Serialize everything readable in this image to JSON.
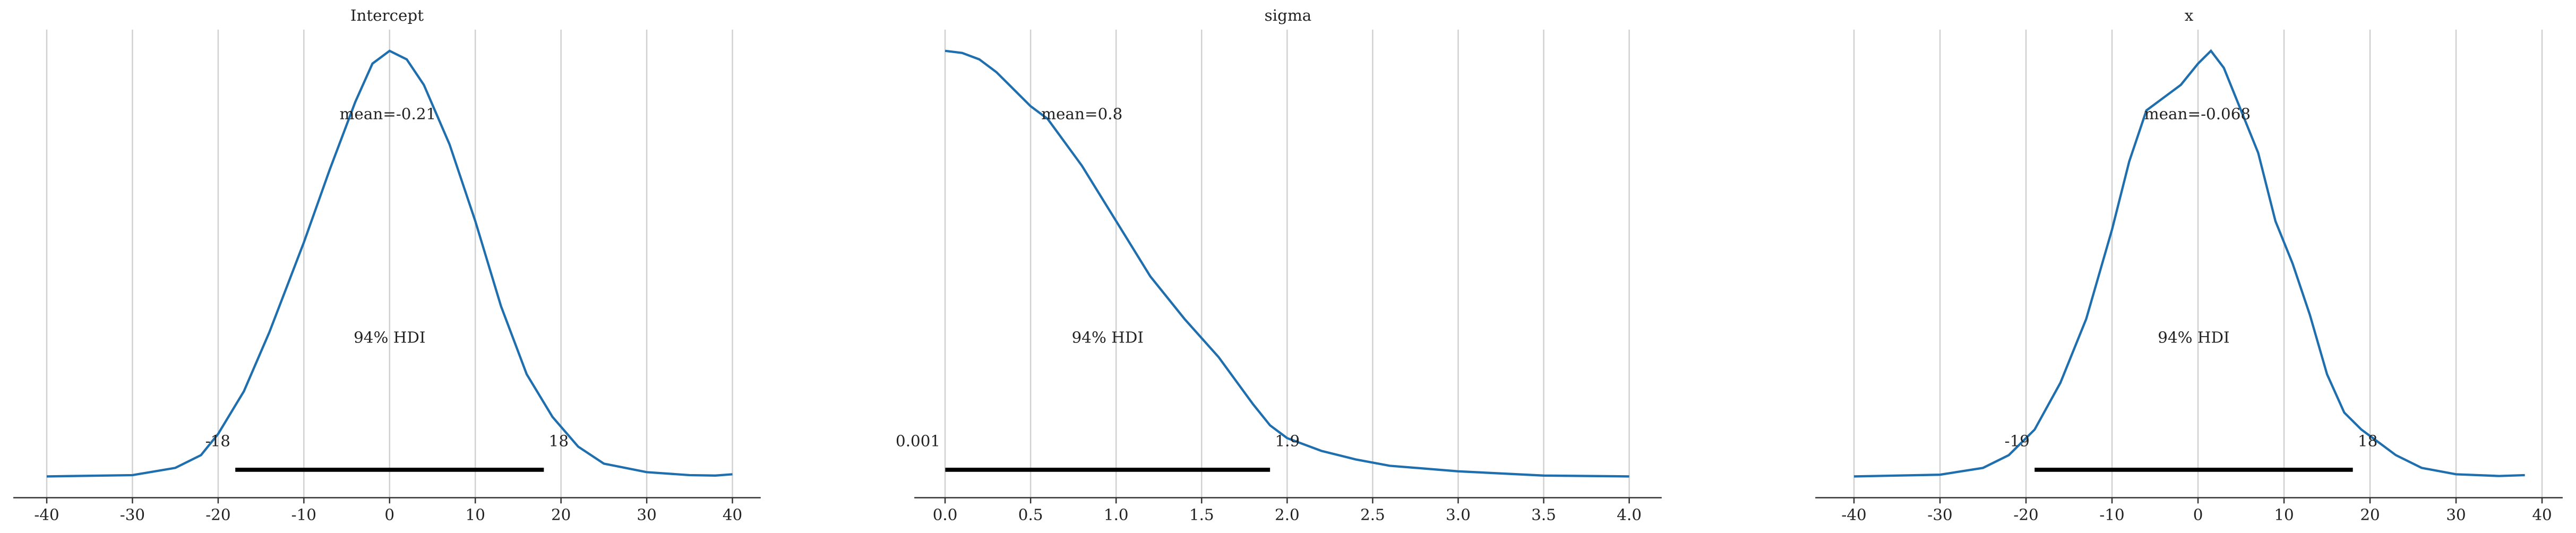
{
  "chart_data": [
    {
      "type": "kde",
      "title": "Intercept",
      "color": "#1f6fae",
      "grid": true,
      "xlim": [
        -43.9,
        43.3
      ],
      "ylim": [
        -0.05,
        1.05
      ],
      "xticks": [
        -40,
        -30,
        -20,
        -10,
        0,
        10,
        20,
        30,
        40
      ],
      "x": [
        -40,
        -30,
        -25,
        -22,
        -20,
        -17,
        -14,
        -10,
        -7,
        -4,
        -2,
        0,
        2,
        4,
        7,
        10,
        13,
        16,
        19,
        22,
        25,
        30,
        35,
        38,
        40
      ],
      "values": [
        0.0,
        0.003,
        0.02,
        0.05,
        0.1,
        0.2,
        0.34,
        0.55,
        0.72,
        0.88,
        0.97,
        1.0,
        0.98,
        0.92,
        0.78,
        0.6,
        0.4,
        0.24,
        0.14,
        0.07,
        0.03,
        0.01,
        0.003,
        0.002,
        0.005
      ],
      "mean": {
        "value": -0.21,
        "label": "mean=-0.21"
      },
      "hdi_label": "94% HDI",
      "hdi": [
        -18,
        18
      ]
    },
    {
      "type": "kde",
      "title": "sigma",
      "color": "#1f6fae",
      "grid": true,
      "xlim": [
        -0.18,
        4.19
      ],
      "ylim": [
        -0.05,
        1.05
      ],
      "xticks": [
        {
          "value": 0,
          "label": "0.0"
        },
        0.5,
        {
          "value": 1,
          "label": "1.0"
        },
        1.5,
        {
          "value": 2,
          "label": "2.0"
        },
        2.5,
        {
          "value": 3,
          "label": "3.0"
        },
        3.5,
        {
          "value": 4,
          "label": "4.0"
        }
      ],
      "x": [
        0,
        0.1,
        0.2,
        0.3,
        0.4,
        0.5,
        0.6,
        0.8,
        1.0,
        1.2,
        1.4,
        1.6,
        1.8,
        1.9,
        2.0,
        2.2,
        2.4,
        2.6,
        3.0,
        3.5,
        4.0
      ],
      "values": [
        1.0,
        0.995,
        0.98,
        0.95,
        0.91,
        0.87,
        0.84,
        0.73,
        0.6,
        0.47,
        0.37,
        0.28,
        0.17,
        0.12,
        0.09,
        0.06,
        0.04,
        0.025,
        0.012,
        0.002,
        0.0
      ],
      "mean": {
        "value": 0.8,
        "label": "mean=0.8"
      },
      "hdi_label": "94% HDI",
      "hdi": [
        0.001,
        1.9
      ]
    },
    {
      "type": "kde",
      "title": "x",
      "color": "#1f6fae",
      "grid": true,
      "xlim": [
        -44.5,
        42.4
      ],
      "ylim": [
        -0.05,
        1.05
      ],
      "xticks": [
        -40,
        -30,
        -20,
        -10,
        0,
        10,
        20,
        30,
        40
      ],
      "x": [
        -40,
        -30,
        -25,
        -22,
        -19,
        -16,
        -13,
        -10,
        -8,
        -6,
        -4,
        -2,
        0,
        1.5,
        3,
        5,
        7,
        9,
        11,
        13,
        15,
        17,
        19,
        21,
        23,
        26,
        30,
        35,
        38
      ],
      "values": [
        0.0,
        0.004,
        0.02,
        0.05,
        0.11,
        0.22,
        0.37,
        0.58,
        0.74,
        0.86,
        0.89,
        0.92,
        0.97,
        1.0,
        0.96,
        0.86,
        0.76,
        0.6,
        0.5,
        0.38,
        0.24,
        0.15,
        0.11,
        0.08,
        0.05,
        0.02,
        0.005,
        0.001,
        0.003
      ],
      "mean": {
        "value": -0.068,
        "label": "mean=-0.068"
      },
      "hdi_label": "94% HDI",
      "hdi": [
        -19,
        18
      ]
    }
  ]
}
